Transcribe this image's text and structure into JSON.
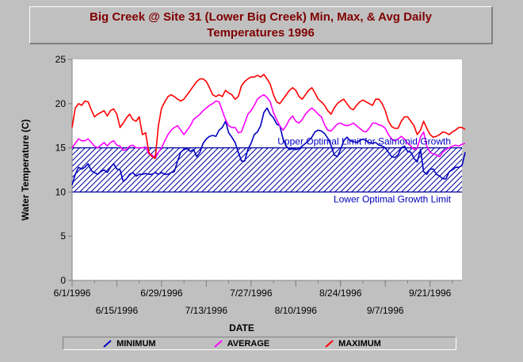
{
  "chart_data": {
    "type": "line",
    "title": "Big Creek @ Site 31 (Lower Big Creek) Min, Max, & Avg Daily Temperatures 1996",
    "title_line1": "Big Creek @ Site 31 (Lower Big Creek) Min, Max, & Avg Daily",
    "title_line2": "Temperatures 1996",
    "xlabel": "DATE",
    "ylabel": "Water Temperature (C)",
    "ylim": [
      0,
      25
    ],
    "yticks": [
      0,
      5,
      10,
      15,
      20,
      25
    ],
    "x_start_date": "1996-06-01",
    "xticks": [
      "6/1/1996",
      "6/15/1996",
      "6/29/1996",
      "7/13/1996",
      "7/27/1996",
      "8/10/1996",
      "8/24/1996",
      "9/7/1996",
      "9/21/1996"
    ],
    "grid": false,
    "legend_position": "bottom",
    "optimal_band": {
      "lower": 10,
      "upper": 15,
      "upper_label": "Upper Optimal Limit for Salmonid Growth",
      "lower_label": "Lower Optimal Growth Limit"
    },
    "series": [
      {
        "name": "MINIMUM",
        "color": "#0000c0",
        "values": [
          10.8,
          12.0,
          12.8,
          12.6,
          12.8,
          13.2,
          12.4,
          12.2,
          12.0,
          12.3,
          12.5,
          12.2,
          12.8,
          13.2,
          12.6,
          12.5,
          11.2,
          11.5,
          12.0,
          12.2,
          11.8,
          12.0,
          12.0,
          12.1,
          12.0,
          12.0,
          12.2,
          12.0,
          12.2,
          12.0,
          12.0,
          12.2,
          12.3,
          13.5,
          14.5,
          14.8,
          14.9,
          14.6,
          14.8,
          14.0,
          14.5,
          15.5,
          16.0,
          16.3,
          16.4,
          16.3,
          17.0,
          17.3,
          18.0,
          16.7,
          16.2,
          15.6,
          14.5,
          13.5,
          13.5,
          14.8,
          15.5,
          16.5,
          16.8,
          17.5,
          19.0,
          19.5,
          18.8,
          18.4,
          17.7,
          17.5,
          16.0,
          15.2,
          14.8,
          14.9,
          14.8,
          14.9,
          15.2,
          15.5,
          15.8,
          16.2,
          16.8,
          17.0,
          16.9,
          16.6,
          16.1,
          15.3,
          14.2,
          14.0,
          14.8,
          15.8,
          16.2,
          15.8,
          15.7,
          15.6,
          15.8,
          16.0,
          15.8,
          15.6,
          15.5,
          15.6,
          15.3,
          15.2,
          15.0,
          14.5,
          14.0,
          13.9,
          14.2,
          15.0,
          15.2,
          14.6,
          14.5,
          13.8,
          13.4,
          14.8,
          12.3,
          12.0,
          12.6,
          12.6,
          12.0,
          11.8,
          11.5,
          11.5,
          12.3,
          12.5,
          12.8,
          12.8,
          13.0,
          14.5
        ]
      },
      {
        "name": "AVERAGE",
        "color": "#ff00ff",
        "values": [
          15.0,
          15.5,
          16.0,
          15.8,
          15.8,
          16.0,
          15.6,
          15.2,
          15.0,
          15.3,
          15.6,
          15.2,
          15.6,
          15.8,
          15.3,
          15.2,
          14.7,
          14.8,
          15.2,
          15.3,
          15.0,
          15.0,
          15.0,
          15.1,
          14.3,
          14.2,
          13.8,
          14.5,
          15.0,
          15.8,
          16.5,
          17.0,
          17.3,
          17.5,
          17.0,
          16.5,
          17.0,
          17.5,
          18.2,
          18.5,
          18.8,
          19.2,
          19.5,
          19.8,
          20.0,
          20.3,
          20.2,
          19.2,
          18.2,
          17.5,
          17.3,
          17.3,
          16.7,
          16.8,
          17.8,
          18.8,
          19.2,
          19.8,
          20.5,
          20.8,
          21.0,
          20.7,
          20.2,
          19.0,
          18.2,
          17.5,
          17.0,
          17.5,
          18.2,
          18.6,
          18.0,
          17.8,
          18.2,
          18.8,
          19.2,
          19.5,
          19.2,
          18.8,
          18.5,
          17.6,
          17.0,
          16.9,
          17.3,
          17.7,
          17.8,
          17.6,
          17.5,
          17.6,
          17.8,
          17.5,
          17.2,
          16.9,
          16.8,
          17.2,
          17.8,
          17.8,
          17.6,
          17.5,
          17.2,
          16.5,
          16.0,
          15.8,
          16.0,
          16.3,
          16.0,
          15.5,
          15.2,
          14.8,
          15.0,
          16.2,
          16.8,
          15.2,
          14.5,
          14.3,
          14.2,
          14.0,
          14.5,
          14.8,
          15.0,
          15.2,
          15.3,
          15.2,
          15.4,
          15.5
        ]
      },
      {
        "name": "MAXIMUM",
        "color": "#ff0000",
        "values": [
          17.3,
          19.5,
          20.0,
          19.8,
          20.3,
          20.2,
          19.3,
          18.5,
          18.8,
          19.0,
          19.2,
          18.6,
          19.2,
          19.4,
          18.8,
          17.3,
          17.8,
          18.4,
          18.8,
          18.2,
          18.0,
          18.5,
          16.5,
          16.7,
          14.5,
          14.0,
          13.8,
          17.5,
          19.5,
          20.2,
          20.8,
          21.0,
          20.8,
          20.5,
          20.3,
          20.5,
          21.0,
          21.5,
          22.0,
          22.5,
          22.8,
          22.8,
          22.5,
          21.8,
          21.0,
          20.8,
          21.0,
          20.8,
          21.5,
          21.2,
          21.0,
          20.5,
          20.8,
          22.0,
          22.5,
          22.8,
          23.0,
          23.0,
          23.2,
          23.0,
          23.3,
          22.8,
          22.2,
          21.0,
          20.2,
          20.0,
          20.5,
          21.0,
          21.5,
          21.8,
          21.5,
          20.8,
          20.5,
          21.0,
          21.5,
          21.8,
          21.2,
          20.5,
          20.2,
          19.8,
          19.2,
          18.8,
          19.5,
          20.0,
          20.3,
          20.5,
          20.0,
          19.5,
          19.3,
          19.8,
          20.2,
          20.4,
          20.2,
          20.0,
          19.8,
          20.5,
          20.5,
          20.0,
          19.2,
          18.0,
          17.4,
          17.2,
          17.2,
          18.0,
          18.5,
          18.5,
          18.0,
          17.5,
          16.5,
          17.0,
          18.0,
          17.2,
          16.5,
          16.2,
          16.3,
          16.5,
          16.8,
          16.7,
          16.5,
          16.8,
          17.0,
          17.3,
          17.3,
          17.1
        ]
      }
    ]
  }
}
